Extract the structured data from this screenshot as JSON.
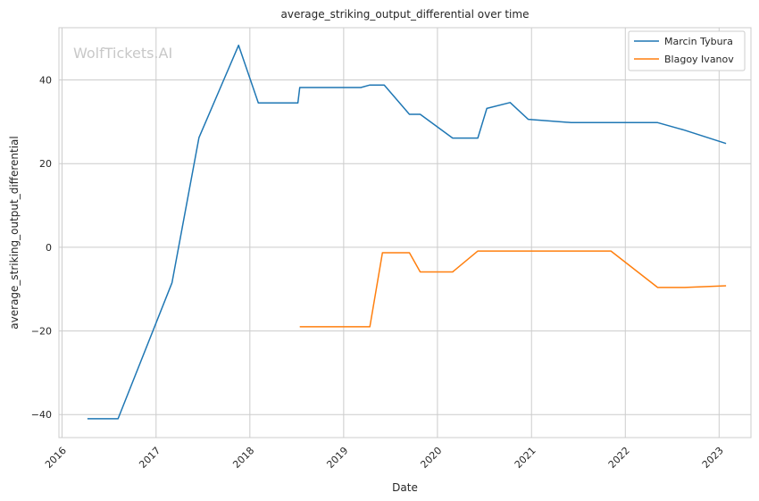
{
  "chart_data": {
    "type": "line",
    "title": "average_striking_output_differential over time",
    "xlabel": "Date",
    "ylabel": "average_striking_output_differential",
    "watermark": "WolfTickets.AI",
    "x_tick_labels": [
      "2016",
      "2017",
      "2018",
      "2019",
      "2020",
      "2021",
      "2022",
      "2023"
    ],
    "y_tick_labels": [
      "40",
      "20",
      "0",
      "−20",
      "−40"
    ],
    "xlim": [
      "2015-12-20",
      "2023-05-05"
    ],
    "ylim": [
      -45.5,
      52.5
    ],
    "grid": true,
    "legend_position": "top-right",
    "series": [
      {
        "name": "Marcin Tybura",
        "color": "#1f77b4",
        "points": [
          [
            "2016-04-09",
            -41.0
          ],
          [
            "2016-08-06",
            -41.0
          ],
          [
            "2017-03-04",
            -8.5
          ],
          [
            "2017-06-17",
            26.2
          ],
          [
            "2017-11-18",
            48.3
          ],
          [
            "2018-02-03",
            34.5
          ],
          [
            "2018-07-07",
            34.5
          ],
          [
            "2018-07-14",
            38.2
          ],
          [
            "2019-03-09",
            38.2
          ],
          [
            "2019-04-13",
            38.8
          ],
          [
            "2019-06-08",
            38.8
          ],
          [
            "2019-09-14",
            31.8
          ],
          [
            "2019-10-26",
            31.8
          ],
          [
            "2020-02-29",
            26.1
          ],
          [
            "2020-06-06",
            26.1
          ],
          [
            "2020-07-11",
            33.2
          ],
          [
            "2020-10-10",
            34.6
          ],
          [
            "2020-12-19",
            30.6
          ],
          [
            "2021-06-05",
            29.8
          ],
          [
            "2022-05-07",
            29.8
          ],
          [
            "2022-08-20",
            28.0
          ],
          [
            "2023-01-28",
            24.8
          ]
        ]
      },
      {
        "name": "Blagoy Ivanov",
        "color": "#ff7f0e",
        "points": [
          [
            "2018-07-14",
            -19.0
          ],
          [
            "2019-04-13",
            -19.0
          ],
          [
            "2019-06-01",
            -1.3
          ],
          [
            "2019-09-14",
            -1.3
          ],
          [
            "2019-10-26",
            -5.9
          ],
          [
            "2020-02-29",
            -5.9
          ],
          [
            "2020-06-06",
            -0.9
          ],
          [
            "2021-11-06",
            -0.9
          ],
          [
            "2022-05-07",
            -9.6
          ],
          [
            "2022-08-20",
            -9.6
          ],
          [
            "2023-01-28",
            -9.2
          ]
        ]
      }
    ]
  }
}
